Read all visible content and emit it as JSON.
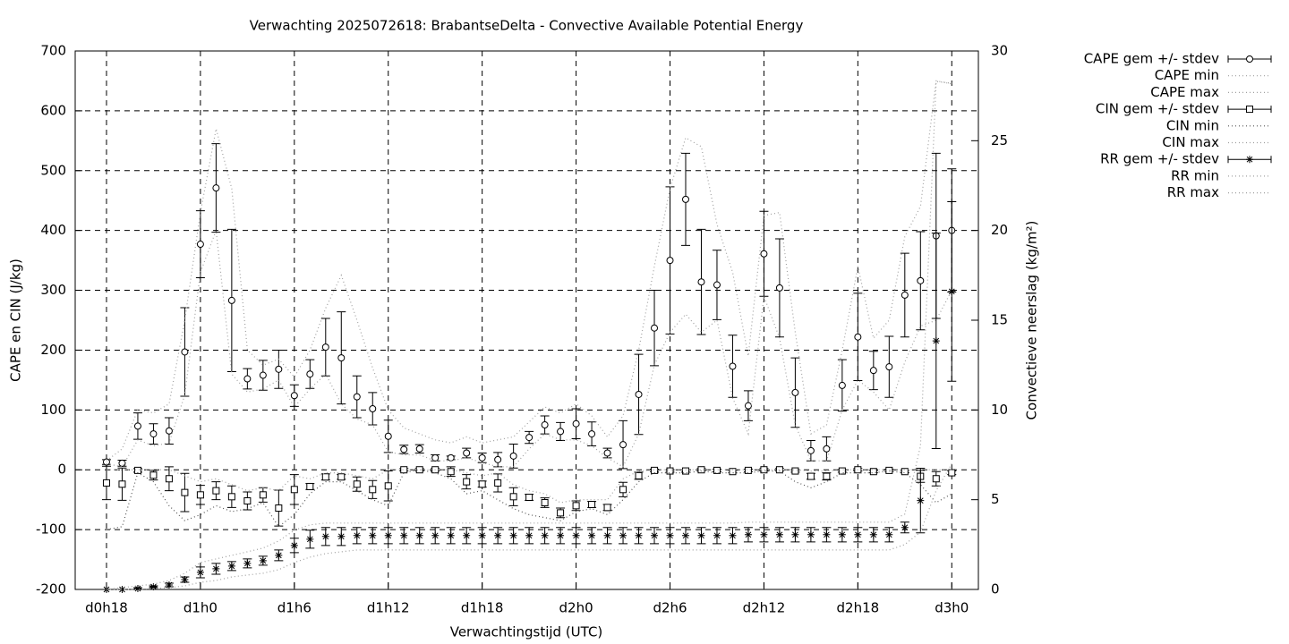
{
  "chart_data": {
    "type": "line",
    "title": "Verwachting 2025072618: BrabantseDelta - Convective Available Potential Energy",
    "xlabel": "Verwachtingstijd (UTC)",
    "ylabel": "CAPE en CIN (J/kg)",
    "y2label": "Convectieve neerslag (kg/m²)",
    "x": [
      0,
      1,
      2,
      3,
      4,
      5,
      6,
      7,
      8,
      9,
      10,
      11,
      12,
      13,
      14,
      15,
      16,
      17,
      18,
      19,
      20,
      21,
      22,
      23,
      24,
      25,
      26,
      27,
      28,
      29,
      30,
      31,
      32,
      33,
      34,
      35,
      36,
      37,
      38,
      39,
      40,
      41,
      42,
      43,
      44,
      45,
      46,
      47,
      48,
      49,
      50,
      51,
      52,
      53,
      54
    ],
    "xlim": [
      -2,
      55.7
    ],
    "xticks": [
      {
        "value": 0,
        "label": "d0h18"
      },
      {
        "value": 6,
        "label": "d1h0"
      },
      {
        "value": 12,
        "label": "d1h6"
      },
      {
        "value": 18,
        "label": "d1h12"
      },
      {
        "value": 24,
        "label": "d1h18"
      },
      {
        "value": 30,
        "label": "d2h0"
      },
      {
        "value": 36,
        "label": "d2h6"
      },
      {
        "value": 42,
        "label": "d2h12"
      },
      {
        "value": 48,
        "label": "d2h18"
      },
      {
        "value": 54,
        "label": "d3h0"
      }
    ],
    "ylim": [
      -200,
      700
    ],
    "yticks": [
      -200,
      -100,
      0,
      100,
      200,
      300,
      400,
      500,
      600,
      700
    ],
    "y2lim": [
      0,
      30
    ],
    "y2ticks": [
      0,
      5,
      10,
      15,
      20,
      25,
      30
    ],
    "grid": true,
    "legend": "right",
    "series": [
      {
        "name": "CAPE gem +/- stdev",
        "style": "errorbar-circle",
        "color": "#000000",
        "values": [
          13,
          11,
          73,
          60,
          65,
          197,
          377,
          471,
          283,
          152,
          158,
          168,
          124,
          160,
          205,
          187,
          122,
          102,
          56,
          34,
          35,
          20,
          20,
          28,
          20,
          17,
          23,
          54,
          75,
          64,
          77,
          60,
          28,
          42,
          126,
          237,
          350,
          452,
          314,
          309,
          173,
          107,
          361,
          304,
          129,
          32,
          35,
          141,
          222,
          166,
          172,
          292,
          316,
          391,
          400
        ],
        "errors": [
          4,
          5,
          22,
          17,
          22,
          74,
          56,
          74,
          119,
          17,
          25,
          32,
          18,
          24,
          48,
          77,
          35,
          27,
          27,
          7,
          7,
          5,
          3,
          8,
          8,
          12,
          20,
          10,
          15,
          15,
          25,
          20,
          8,
          40,
          67,
          63,
          123,
          77,
          88,
          58,
          52,
          25,
          71,
          82,
          58,
          17,
          20,
          43,
          73,
          32,
          51,
          70,
          82,
          138,
          103
        ]
      },
      {
        "name": "CAPE min",
        "style": "dotted",
        "color": "#a0a0a0",
        "values": [
          10,
          5,
          50,
          40,
          45,
          125,
          330,
          400,
          160,
          130,
          135,
          150,
          105,
          135,
          160,
          110,
          85,
          75,
          30,
          25,
          25,
          15,
          15,
          20,
          12,
          5,
          5,
          35,
          60,
          50,
          50,
          40,
          20,
          5,
          60,
          175,
          230,
          260,
          230,
          250,
          120,
          60,
          290,
          220,
          75,
          15,
          15,
          100,
          150,
          130,
          100,
          180,
          240,
          250,
          300
        ]
      },
      {
        "name": "CAPE max",
        "style": "dotted",
        "color": "#a0a0a0",
        "values": [
          15,
          35,
          100,
          95,
          110,
          250,
          430,
          570,
          470,
          200,
          175,
          185,
          155,
          200,
          270,
          325,
          250,
          170,
          100,
          70,
          60,
          50,
          45,
          55,
          45,
          50,
          55,
          80,
          105,
          95,
          110,
          90,
          55,
          90,
          200,
          340,
          470,
          555,
          540,
          410,
          330,
          190,
          425,
          430,
          230,
          60,
          75,
          200,
          340,
          220,
          250,
          390,
          440,
          650,
          645
        ]
      },
      {
        "name": "CIN gem +/- stdev",
        "style": "errorbar-square",
        "color": "#000000",
        "values": [
          -22,
          -24,
          -1,
          -9,
          -15,
          -38,
          -42,
          -35,
          -45,
          -52,
          -42,
          -64,
          -33,
          -28,
          -12,
          -12,
          -24,
          -33,
          -27,
          0,
          0,
          0,
          -3,
          -20,
          -24,
          -22,
          -45,
          -46,
          -55,
          -72,
          -60,
          -58,
          -63,
          -33,
          -10,
          -1,
          -2,
          -2,
          0,
          -1,
          -3,
          -1,
          0,
          0,
          -2,
          -11,
          -11,
          -2,
          0,
          -3,
          -1,
          -3,
          -11,
          -15,
          -5
        ],
        "errors": [
          28,
          27,
          3,
          8,
          20,
          32,
          16,
          15,
          18,
          15,
          12,
          30,
          25,
          5,
          5,
          4,
          12,
          15,
          25,
          2,
          2,
          2,
          8,
          12,
          5,
          15,
          15,
          5,
          8,
          8,
          8,
          5,
          5,
          12,
          6,
          2,
          2,
          2,
          2,
          2,
          2,
          2,
          2,
          2,
          2,
          5,
          6,
          2,
          2,
          2,
          2,
          2,
          10,
          12,
          3
        ]
      },
      {
        "name": "CIN min",
        "style": "dotted",
        "color": "#555555",
        "values": [
          -100,
          -95,
          -5,
          -20,
          -60,
          -85,
          -75,
          -60,
          -70,
          -65,
          -55,
          -95,
          -75,
          -40,
          -20,
          -20,
          -35,
          -50,
          -60,
          -5,
          0,
          -5,
          -15,
          -40,
          -35,
          -50,
          -65,
          -75,
          -80,
          -85,
          -70,
          -65,
          -75,
          -50,
          -20,
          -5,
          -5,
          -5,
          -2,
          -5,
          -5,
          -5,
          -2,
          -2,
          -20,
          -30,
          -20,
          -5,
          -5,
          -5,
          -2,
          -5,
          -25,
          -55,
          -40
        ]
      },
      {
        "name": "CIN max",
        "style": "dotted",
        "color": "#a0a0a0",
        "values": [
          0,
          0,
          0,
          0,
          0,
          -10,
          -20,
          -15,
          -25,
          -35,
          -30,
          -35,
          -10,
          -15,
          -5,
          -5,
          -10,
          -15,
          0,
          0,
          0,
          0,
          0,
          -5,
          -10,
          -5,
          -25,
          -35,
          -40,
          -55,
          -50,
          -50,
          -50,
          -15,
          -2,
          0,
          0,
          0,
          0,
          0,
          0,
          0,
          0,
          0,
          0,
          -2,
          -2,
          0,
          0,
          0,
          0,
          0,
          0,
          0,
          0
        ]
      },
      {
        "name": "RR gem +/- stdev",
        "style": "errorbar-star",
        "color": "#000000",
        "axis": "y2",
        "values": [
          0,
          0,
          0.05,
          0.15,
          0.25,
          0.55,
          0.95,
          1.15,
          1.3,
          1.45,
          1.6,
          1.9,
          2.45,
          2.8,
          2.95,
          2.95,
          3,
          3,
          3,
          3,
          3,
          3,
          3,
          3,
          3,
          3,
          3,
          3,
          3,
          3,
          3,
          3,
          3,
          3,
          3,
          3,
          3,
          3,
          3,
          3,
          3,
          3.05,
          3.05,
          3.05,
          3.05,
          3.05,
          3.05,
          3.05,
          3.05,
          3.05,
          3.05,
          3.45,
          4.95,
          13.85,
          16.6
        ],
        "errors": [
          0,
          0,
          0.05,
          0.05,
          0.1,
          0.15,
          0.3,
          0.3,
          0.25,
          0.25,
          0.25,
          0.3,
          0.4,
          0.5,
          0.5,
          0.5,
          0.45,
          0.45,
          0.45,
          0.45,
          0.45,
          0.45,
          0.45,
          0.45,
          0.45,
          0.45,
          0.45,
          0.45,
          0.45,
          0.45,
          0.45,
          0.45,
          0.45,
          0.45,
          0.45,
          0.45,
          0.45,
          0.45,
          0.45,
          0.45,
          0.45,
          0.4,
          0.4,
          0.4,
          0.4,
          0.4,
          0.4,
          0.4,
          0.4,
          0.4,
          0.4,
          0.3,
          1.8,
          6,
          5
        ]
      },
      {
        "name": "RR min",
        "style": "dotted",
        "color": "#a0a0a0",
        "axis": "y2",
        "values": [
          0,
          0,
          0,
          0.05,
          0.1,
          0.2,
          0.4,
          0.5,
          0.7,
          0.8,
          0.9,
          1.1,
          1.5,
          1.8,
          2,
          2.1,
          2.2,
          2.2,
          2.2,
          2.2,
          2.2,
          2.2,
          2.2,
          2.2,
          2.2,
          2.2,
          2.2,
          2.2,
          2.2,
          2.2,
          2.2,
          2.2,
          2.2,
          2.2,
          2.2,
          2.2,
          2.2,
          2.2,
          2.2,
          2.2,
          2.2,
          2.2,
          2.2,
          2.2,
          2.2,
          2.2,
          2.2,
          2.2,
          2.2,
          2.2,
          2.2,
          2.5,
          3.2,
          5.5,
          7
        ]
      },
      {
        "name": "RR max",
        "style": "dotted",
        "color": "#a0a0a0",
        "axis": "y2",
        "values": [
          0,
          0.1,
          0.2,
          0.3,
          0.5,
          0.9,
          1.5,
          1.7,
          1.9,
          2.1,
          2.3,
          2.7,
          3.3,
          3.6,
          3.7,
          3.7,
          3.7,
          3.7,
          3.7,
          3.7,
          3.7,
          3.7,
          3.7,
          3.7,
          3.7,
          3.7,
          3.7,
          3.7,
          3.7,
          3.7,
          3.7,
          3.7,
          3.7,
          3.7,
          3.7,
          3.7,
          3.7,
          3.7,
          3.7,
          3.7,
          3.7,
          3.75,
          3.75,
          3.75,
          3.75,
          3.75,
          3.75,
          3.75,
          3.75,
          3.75,
          3.75,
          4.2,
          8,
          28.3,
          28.2
        ]
      }
    ]
  }
}
